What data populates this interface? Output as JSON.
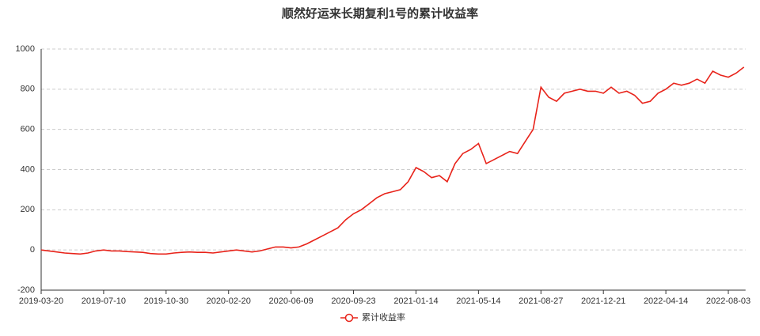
{
  "chart_data": {
    "type": "line",
    "title": "顺然好运来长期复利1号的累计收益率",
    "categories": [
      "2019-03-20",
      null,
      null,
      null,
      null,
      null,
      null,
      null,
      "2019-07-10",
      null,
      null,
      null,
      null,
      null,
      null,
      null,
      "2019-10-30",
      null,
      null,
      null,
      null,
      null,
      null,
      null,
      "2020-02-20",
      null,
      null,
      null,
      null,
      null,
      null,
      null,
      "2020-06-09",
      null,
      null,
      null,
      null,
      null,
      null,
      null,
      "2020-09-23",
      null,
      null,
      null,
      null,
      null,
      null,
      null,
      "2021-01-14",
      null,
      null,
      null,
      null,
      null,
      null,
      null,
      "2021-05-14",
      null,
      null,
      null,
      null,
      null,
      null,
      null,
      "2021-08-27",
      null,
      null,
      null,
      null,
      null,
      null,
      null,
      "2021-12-21",
      null,
      null,
      null,
      null,
      null,
      null,
      null,
      "2022-04-14",
      null,
      null,
      null,
      null,
      null,
      null,
      null,
      "2022-08-03",
      null,
      null
    ],
    "series": [
      {
        "name": "累计收益率",
        "color": "#e8231a",
        "values": [
          0,
          -5,
          -10,
          -15,
          -18,
          -20,
          -15,
          -5,
          0,
          -5,
          -5,
          -8,
          -10,
          -12,
          -18,
          -20,
          -20,
          -15,
          -12,
          -10,
          -12,
          -12,
          -15,
          -10,
          -5,
          0,
          -5,
          -10,
          -5,
          5,
          15,
          15,
          10,
          15,
          30,
          50,
          70,
          90,
          110,
          150,
          180,
          200,
          230,
          260,
          280,
          290,
          300,
          340,
          410,
          390,
          360,
          370,
          340,
          430,
          480,
          500,
          530,
          430,
          450,
          470,
          490,
          480,
          540,
          600,
          810,
          760,
          740,
          780,
          790,
          800,
          790,
          790,
          780,
          810,
          780,
          790,
          770,
          730,
          740,
          780,
          800,
          830,
          820,
          830,
          850,
          830,
          890,
          870,
          860,
          880,
          910
        ]
      }
    ],
    "ylim": [
      -200,
      1000
    ],
    "yticks": [
      -200,
      0,
      200,
      400,
      600,
      800,
      1000
    ],
    "grid": true
  }
}
